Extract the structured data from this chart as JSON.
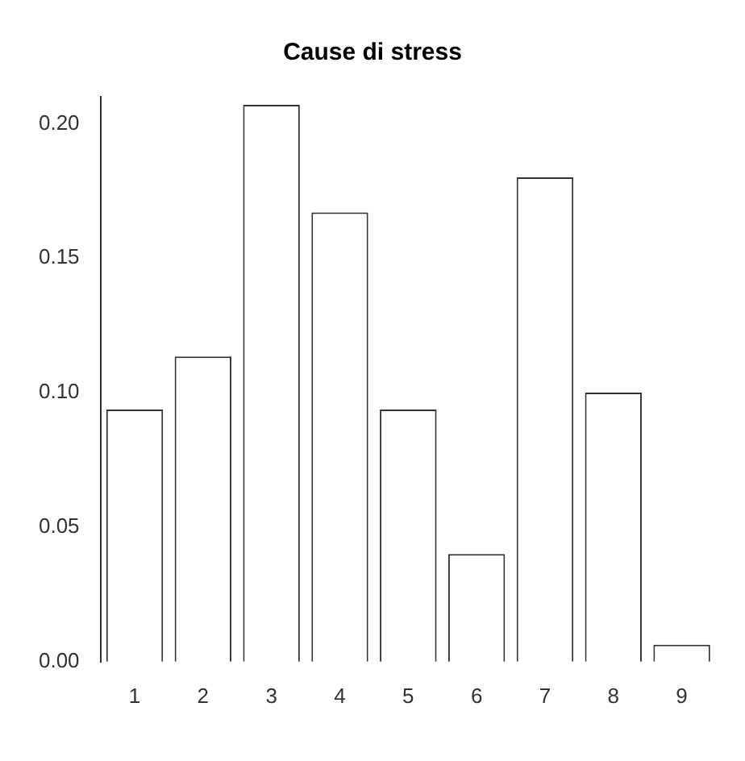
{
  "chart_data": {
    "type": "bar",
    "title": "Cause di stress",
    "categories": [
      "1",
      "2",
      "3",
      "4",
      "5",
      "6",
      "7",
      "8",
      "9"
    ],
    "values": [
      0.0937,
      0.1134,
      0.207,
      0.167,
      0.0937,
      0.04,
      0.18,
      0.1,
      0.0063
    ],
    "color": "#ffffff",
    "ylim": [
      0,
      0.21
    ],
    "yticks": [
      {
        "value": 0,
        "label": "0.00"
      },
      {
        "value": 0.05,
        "label": "0.05"
      },
      {
        "value": 0.1,
        "label": "0.10"
      },
      {
        "value": 0.15,
        "label": "0.15"
      },
      {
        "value": 0.2,
        "label": "0.20"
      }
    ],
    "grid": false,
    "legend": false
  }
}
